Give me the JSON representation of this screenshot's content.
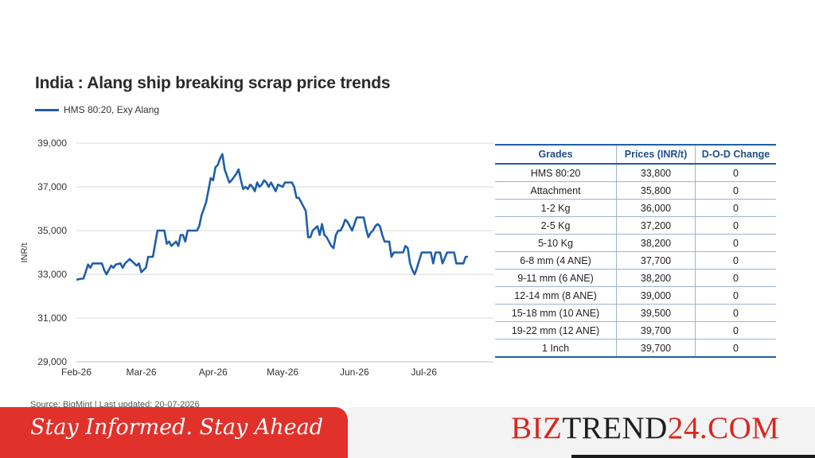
{
  "chart_data": {
    "type": "line",
    "title": "India : Alang ship breaking scrap price trends",
    "ylabel": "INR/t",
    "xlabel": "",
    "ylim": [
      29000,
      39000
    ],
    "y_ticks": [
      "29,000",
      "31,000",
      "33,000",
      "35,000",
      "37,000",
      "39,000"
    ],
    "y_tick_values": [
      29000,
      31000,
      33000,
      35000,
      37000,
      39000
    ],
    "x_ticks": [
      "Feb-26",
      "Mar-26",
      "Apr-26",
      "May-26",
      "Jun-26",
      "Jul-26"
    ],
    "x_tick_values": [
      "2026-02-01",
      "2026-03-01",
      "2026-04-01",
      "2026-05-01",
      "2026-06-01",
      "2026-07-01"
    ],
    "x_range": [
      "2026-02-01",
      "2026-07-31"
    ],
    "grid": true,
    "legend_position": "top-left",
    "series": [
      {
        "name": "HMS 80:20, Exy Alang",
        "color": "#1f5fa8",
        "points": [
          [
            "2026-02-01",
            32750
          ],
          [
            "2026-02-03",
            32800
          ],
          [
            "2026-02-04",
            32800
          ],
          [
            "2026-02-05",
            33100
          ],
          [
            "2026-02-06",
            33450
          ],
          [
            "2026-02-07",
            33300
          ],
          [
            "2026-02-08",
            33500
          ],
          [
            "2026-02-10",
            33500
          ],
          [
            "2026-02-12",
            33500
          ],
          [
            "2026-02-13",
            33200
          ],
          [
            "2026-02-14",
            33000
          ],
          [
            "2026-02-15",
            33200
          ],
          [
            "2026-02-16",
            33400
          ],
          [
            "2026-02-17",
            33300
          ],
          [
            "2026-02-18",
            33450
          ],
          [
            "2026-02-20",
            33500
          ],
          [
            "2026-02-21",
            33300
          ],
          [
            "2026-02-22",
            33500
          ],
          [
            "2026-02-24",
            33700
          ],
          [
            "2026-02-26",
            33500
          ],
          [
            "2026-02-27",
            33400
          ],
          [
            "2026-02-28",
            33500
          ],
          [
            "2026-03-01",
            33100
          ],
          [
            "2026-03-03",
            33300
          ],
          [
            "2026-03-04",
            33800
          ],
          [
            "2026-03-06",
            33800
          ],
          [
            "2026-03-07",
            34400
          ],
          [
            "2026-03-08",
            35000
          ],
          [
            "2026-03-11",
            35000
          ],
          [
            "2026-03-12",
            34400
          ],
          [
            "2026-03-13",
            34500
          ],
          [
            "2026-03-14",
            34300
          ],
          [
            "2026-03-16",
            34500
          ],
          [
            "2026-03-17",
            34300
          ],
          [
            "2026-03-18",
            34800
          ],
          [
            "2026-03-19",
            34800
          ],
          [
            "2026-03-20",
            34500
          ],
          [
            "2026-03-21",
            35000
          ],
          [
            "2026-03-25",
            35000
          ],
          [
            "2026-03-26",
            35200
          ],
          [
            "2026-03-27",
            35700
          ],
          [
            "2026-03-28",
            36000
          ],
          [
            "2026-03-29",
            36300
          ],
          [
            "2026-03-31",
            37400
          ],
          [
            "2026-04-01",
            37300
          ],
          [
            "2026-04-02",
            37900
          ],
          [
            "2026-04-03",
            38000
          ],
          [
            "2026-04-04",
            38300
          ],
          [
            "2026-04-05",
            38500
          ],
          [
            "2026-04-06",
            37800
          ],
          [
            "2026-04-07",
            37500
          ],
          [
            "2026-04-08",
            37200
          ],
          [
            "2026-04-09",
            37300
          ],
          [
            "2026-04-11",
            37600
          ],
          [
            "2026-04-12",
            37800
          ],
          [
            "2026-04-13",
            37300
          ],
          [
            "2026-04-14",
            36900
          ],
          [
            "2026-04-15",
            37000
          ],
          [
            "2026-04-16",
            36900
          ],
          [
            "2026-04-17",
            37100
          ],
          [
            "2026-04-18",
            37000
          ],
          [
            "2026-04-19",
            36800
          ],
          [
            "2026-04-20",
            37200
          ],
          [
            "2026-04-21",
            37000
          ],
          [
            "2026-04-22",
            37100
          ],
          [
            "2026-04-23",
            37300
          ],
          [
            "2026-04-24",
            37200
          ],
          [
            "2026-04-25",
            37000
          ],
          [
            "2026-04-26",
            37200
          ],
          [
            "2026-04-28",
            36800
          ],
          [
            "2026-04-29",
            37100
          ],
          [
            "2026-05-01",
            37000
          ],
          [
            "2026-05-02",
            37200
          ],
          [
            "2026-05-05",
            37200
          ],
          [
            "2026-05-06",
            37000
          ],
          [
            "2026-05-07",
            36500
          ],
          [
            "2026-05-08",
            36500
          ],
          [
            "2026-05-09",
            36300
          ],
          [
            "2026-05-11",
            35900
          ],
          [
            "2026-05-12",
            34700
          ],
          [
            "2026-05-13",
            34700
          ],
          [
            "2026-05-14",
            35000
          ],
          [
            "2026-05-15",
            35100
          ],
          [
            "2026-05-16",
            35200
          ],
          [
            "2026-05-17",
            34800
          ],
          [
            "2026-05-18",
            35300
          ],
          [
            "2026-05-19",
            34800
          ],
          [
            "2026-05-20",
            34700
          ],
          [
            "2026-05-21",
            34500
          ],
          [
            "2026-05-22",
            34300
          ],
          [
            "2026-05-23",
            34200
          ],
          [
            "2026-05-24",
            34800
          ],
          [
            "2026-05-25",
            35000
          ],
          [
            "2026-05-26",
            35000
          ],
          [
            "2026-05-27",
            35200
          ],
          [
            "2026-05-28",
            35500
          ],
          [
            "2026-05-29",
            35400
          ],
          [
            "2026-05-30",
            35200
          ],
          [
            "2026-05-31",
            35000
          ],
          [
            "2026-06-01",
            35300
          ],
          [
            "2026-06-02",
            35600
          ],
          [
            "2026-06-04",
            35600
          ],
          [
            "2026-06-05",
            35600
          ],
          [
            "2026-06-06",
            35100
          ],
          [
            "2026-06-07",
            34700
          ],
          [
            "2026-06-08",
            34900
          ],
          [
            "2026-06-09",
            35000
          ],
          [
            "2026-06-10",
            35200
          ],
          [
            "2026-06-11",
            35300
          ],
          [
            "2026-06-12",
            35200
          ],
          [
            "2026-06-13",
            34800
          ],
          [
            "2026-06-14",
            34500
          ],
          [
            "2026-06-16",
            34500
          ],
          [
            "2026-06-17",
            33800
          ],
          [
            "2026-06-18",
            34000
          ],
          [
            "2026-06-22",
            34000
          ],
          [
            "2026-06-23",
            34300
          ],
          [
            "2026-06-24",
            34200
          ],
          [
            "2026-06-25",
            33500
          ],
          [
            "2026-06-26",
            33200
          ],
          [
            "2026-06-27",
            33000
          ],
          [
            "2026-06-28",
            33300
          ],
          [
            "2026-06-30",
            34000
          ],
          [
            "2026-07-04",
            34000
          ],
          [
            "2026-07-05",
            33500
          ],
          [
            "2026-07-06",
            34000
          ],
          [
            "2026-07-08",
            34000
          ],
          [
            "2026-07-09",
            33500
          ],
          [
            "2026-07-11",
            34000
          ],
          [
            "2026-07-14",
            34000
          ],
          [
            "2026-07-15",
            33500
          ],
          [
            "2026-07-18",
            33500
          ],
          [
            "2026-07-19",
            33800
          ],
          [
            "2026-07-20",
            33800
          ]
        ]
      }
    ],
    "table": {
      "headers": [
        "Grades",
        "Prices (INR/t)",
        "D-O-D Change"
      ],
      "rows": [
        [
          "HMS 80:20",
          "33,800",
          "0"
        ],
        [
          "Attachment",
          "35,800",
          "0"
        ],
        [
          "1-2 Kg",
          "36,000",
          "0"
        ],
        [
          "2-5 Kg",
          "37,200",
          "0"
        ],
        [
          "5-10 Kg",
          "38,200",
          "0"
        ],
        [
          "6-8 mm (4 ANE)",
          "37,700",
          "0"
        ],
        [
          "9-11 mm (6 ANE)",
          "38,200",
          "0"
        ],
        [
          "12-14 mm (8 ANE)",
          "39,000",
          "0"
        ],
        [
          "15-18 mm (10 ANE)",
          "39,500",
          "0"
        ],
        [
          "19-22 mm (12 ANE)",
          "39,700",
          "0"
        ],
        [
          "1 Inch",
          "39,700",
          "0"
        ]
      ]
    }
  },
  "source_text": "Source: BigMint | Last updated: 20-07-2026",
  "footer": {
    "tagline": "Stay Informed. Stay Ahead",
    "brand_red_1": "BIZ",
    "brand_dark": "TREND",
    "brand_red_2": "24.COM"
  },
  "colors": {
    "line": "#1f5fa8",
    "grid": "#d9d9d9",
    "footer_red": "#e0312b",
    "brand_red": "#d8281f"
  }
}
